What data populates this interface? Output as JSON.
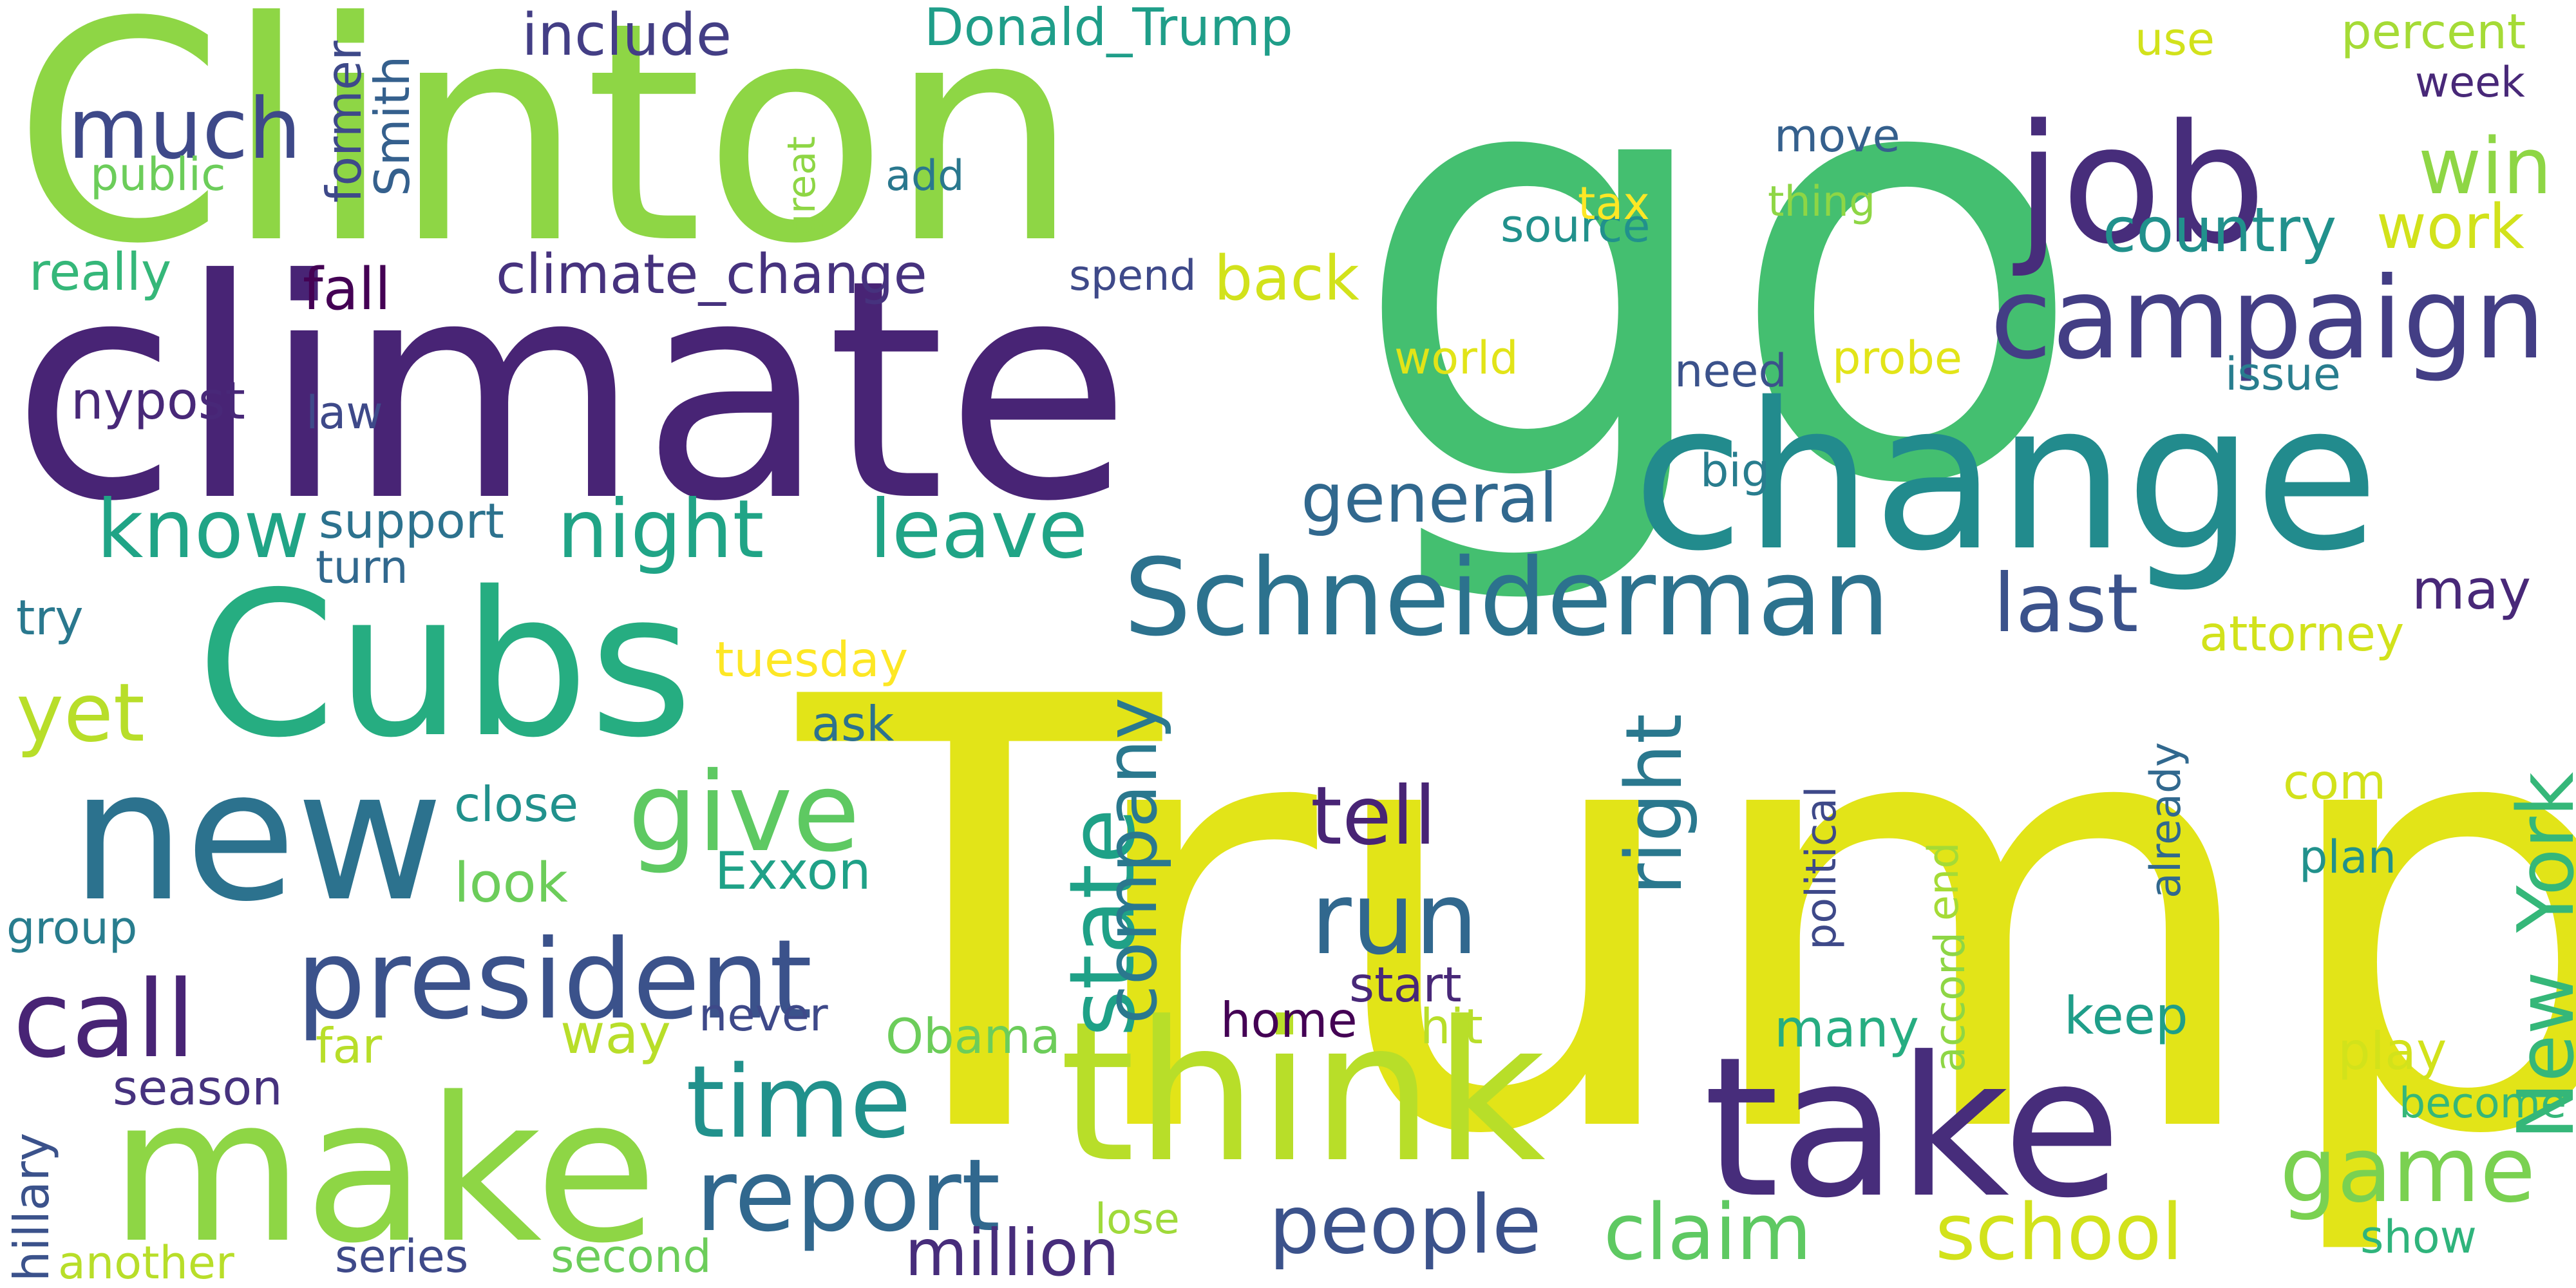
{
  "words": [
    {
      "text": "go",
      "color": "#44bf70"
    },
    {
      "text": "Trump",
      "color": "#e2e418"
    },
    {
      "text": "Clinton",
      "color": "#8ed645"
    },
    {
      "text": "climate",
      "color": "#482475"
    },
    {
      "text": "change",
      "color": "#228b8d"
    },
    {
      "text": "Cubs",
      "color": "#26ad81"
    },
    {
      "text": "make",
      "color": "#8ed645"
    },
    {
      "text": "think",
      "color": "#b8de29"
    },
    {
      "text": "take",
      "color": "#472d7b"
    },
    {
      "text": "new",
      "color": "#2c728e"
    },
    {
      "text": "job",
      "color": "#472d7b"
    },
    {
      "text": "campaign",
      "color": "#433e85"
    },
    {
      "text": "Schneiderman",
      "color": "#2c728e"
    },
    {
      "text": "president",
      "color": "#3b528b"
    },
    {
      "text": "give",
      "color": "#5ec962"
    },
    {
      "text": "report",
      "color": "#31688e"
    },
    {
      "text": "time",
      "color": "#21918c"
    },
    {
      "text": "run",
      "color": "#31688e"
    },
    {
      "text": "state",
      "color": "#1fa187"
    },
    {
      "text": "company",
      "color": "#2a788e"
    },
    {
      "text": "game",
      "color": "#7ad151"
    },
    {
      "text": "people",
      "color": "#3b528b"
    },
    {
      "text": "school",
      "color": "#d2e21b"
    },
    {
      "text": "claim",
      "color": "#5ec962"
    },
    {
      "text": "call",
      "color": "#482475"
    },
    {
      "text": "night",
      "color": "#20a486"
    },
    {
      "text": "leave",
      "color": "#20a486"
    },
    {
      "text": "much",
      "color": "#3e4989"
    },
    {
      "text": "know",
      "color": "#20a486"
    },
    {
      "text": "yet",
      "color": "#b8de29"
    },
    {
      "text": "tell",
      "color": "#482475"
    },
    {
      "text": "right",
      "color": "#2a788e"
    },
    {
      "text": "last",
      "color": "#3b528b"
    },
    {
      "text": "New_York",
      "color": "#35b779"
    },
    {
      "text": "win",
      "color": "#8ed645"
    },
    {
      "text": "work",
      "color": "#d2e21b"
    },
    {
      "text": "country",
      "color": "#21918c"
    },
    {
      "text": "general",
      "color": "#31688e"
    },
    {
      "text": "back",
      "color": "#d2e21b"
    },
    {
      "text": "million",
      "color": "#472d7b"
    },
    {
      "text": "include",
      "color": "#433e85"
    },
    {
      "text": "Donald_Trump",
      "color": "#1f9e89"
    },
    {
      "text": "climate_change",
      "color": "#46327e"
    },
    {
      "text": "fall",
      "color": "#440154"
    },
    {
      "text": "nypost",
      "color": "#482878"
    },
    {
      "text": "law",
      "color": "#3e4989"
    },
    {
      "text": "former",
      "color": "#3e4989"
    },
    {
      "text": "Smith",
      "color": "#35608d"
    },
    {
      "text": "support",
      "color": "#2c728e"
    },
    {
      "text": "turn",
      "color": "#31688e"
    },
    {
      "text": "public",
      "color": "#6ccd5a"
    },
    {
      "text": "really",
      "color": "#35b779"
    },
    {
      "text": "try",
      "color": "#2a788e"
    },
    {
      "text": "tuesday",
      "color": "#fde725"
    },
    {
      "text": "ask",
      "color": "#2c728e"
    },
    {
      "text": "close",
      "color": "#21918c"
    },
    {
      "text": "look",
      "color": "#6ccd5a"
    },
    {
      "text": "Exxon",
      "color": "#1fa187"
    },
    {
      "text": "group",
      "color": "#287d8e"
    },
    {
      "text": "way",
      "color": "#b8de29"
    },
    {
      "text": "never",
      "color": "#3e4989"
    },
    {
      "text": "Obama",
      "color": "#6ccd5a"
    },
    {
      "text": "home",
      "color": "#440154"
    },
    {
      "text": "hit",
      "color": "#b8de29"
    },
    {
      "text": "start",
      "color": "#482878"
    },
    {
      "text": "far",
      "color": "#b8de29"
    },
    {
      "text": "season",
      "color": "#46327e"
    },
    {
      "text": "hillary",
      "color": "#3b528b"
    },
    {
      "text": "another",
      "color": "#b8de29"
    },
    {
      "text": "series",
      "color": "#3e4989"
    },
    {
      "text": "second",
      "color": "#6ccd5a"
    },
    {
      "text": "lose",
      "color": "#9fda3a"
    },
    {
      "text": "many",
      "color": "#26ad81"
    },
    {
      "text": "keep",
      "color": "#1f9e89"
    },
    {
      "text": "play",
      "color": "#d2e21b"
    },
    {
      "text": "become",
      "color": "#35b779"
    },
    {
      "text": "show",
      "color": "#2fb47c"
    },
    {
      "text": "com",
      "color": "#d2e21b"
    },
    {
      "text": "plan",
      "color": "#21918c"
    },
    {
      "text": "already",
      "color": "#31688e"
    },
    {
      "text": "political",
      "color": "#3e4989"
    },
    {
      "text": "accord",
      "color": "#8ed645"
    },
    {
      "text": "end",
      "color": "#a5db36"
    },
    {
      "text": "attorney",
      "color": "#d2e21b"
    },
    {
      "text": "may",
      "color": "#482878"
    },
    {
      "text": "issue",
      "color": "#287d8e"
    },
    {
      "text": "probe",
      "color": "#e2e418"
    },
    {
      "text": "need",
      "color": "#3b528b"
    },
    {
      "text": "big",
      "color": "#287d8e"
    },
    {
      "text": "world",
      "color": "#e2e418"
    },
    {
      "text": "spend",
      "color": "#3e4989"
    },
    {
      "text": "source",
      "color": "#21918c"
    },
    {
      "text": "tax",
      "color": "#fde725"
    },
    {
      "text": "thing",
      "color": "#8ed645"
    },
    {
      "text": "move",
      "color": "#35608d"
    },
    {
      "text": "add",
      "color": "#2a788e"
    },
    {
      "text": "great",
      "color": "#8ed645"
    },
    {
      "text": "use",
      "color": "#d2e21b"
    },
    {
      "text": "percent",
      "color": "#a5db36"
    },
    {
      "text": "week",
      "color": "#482878"
    }
  ]
}
